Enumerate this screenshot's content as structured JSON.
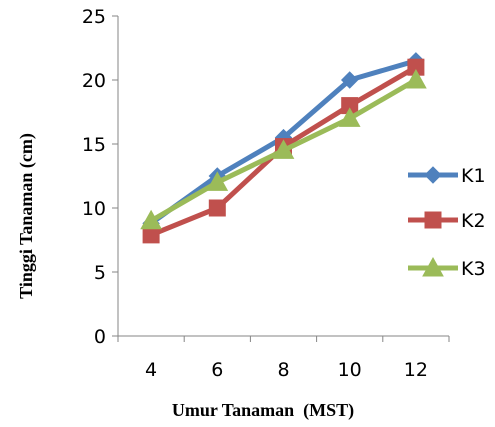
{
  "chart_data": {
    "type": "line",
    "categories": [
      "4",
      "6",
      "8",
      "10",
      "12"
    ],
    "series": [
      {
        "name": "K1",
        "values": [
          8.8,
          12.5,
          15.5,
          20.0,
          21.5
        ],
        "color": "#4f81bd",
        "marker": "diamond"
      },
      {
        "name": "K2",
        "values": [
          7.9,
          10.0,
          14.8,
          18.0,
          21.0
        ],
        "color": "#c0504d",
        "marker": "square"
      },
      {
        "name": "K3",
        "values": [
          9.0,
          12.0,
          14.5,
          17.0,
          20.0
        ],
        "color": "#9bbb59",
        "marker": "triangle"
      }
    ],
    "xlabel": "Umur Tanaman  (MST)",
    "ylabel": "Tinggi Tanaman (cm)",
    "ylim": [
      0,
      25
    ],
    "yticks": [
      "0",
      "5",
      "10",
      "15",
      "20",
      "25"
    ],
    "grid": false,
    "legend_position": "right"
  }
}
